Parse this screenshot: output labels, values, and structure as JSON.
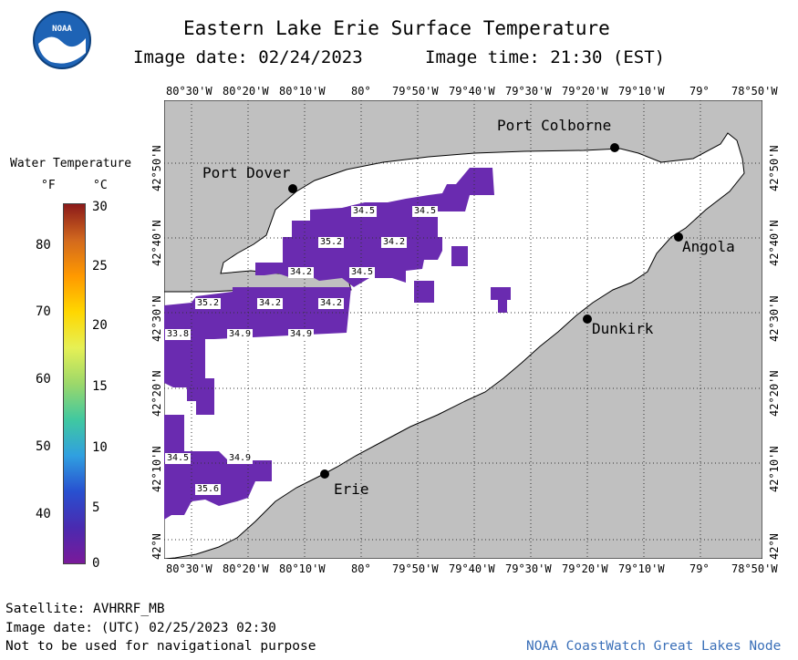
{
  "header": {
    "title": "Eastern Lake Erie Surface Temperature",
    "image_date_label": "Image date: 02/24/2023",
    "image_time_label": "Image time: 21:30 (EST)",
    "logo_text": "NOAA"
  },
  "map": {
    "lon_labels": [
      "80°30'W",
      "80°20'W",
      "80°10'W",
      "80°",
      "79°50'W",
      "79°40'W",
      "79°30'W",
      "79°20'W",
      "79°10'W",
      "79°",
      "78°50'W"
    ],
    "lat_labels": [
      "42°N",
      "42°10'N",
      "42°20'N",
      "42°30'N",
      "42°40'N",
      "42°50'N"
    ],
    "cities": [
      {
        "name": "Port Colborne"
      },
      {
        "name": "Port Dover"
      },
      {
        "name": "Angola"
      },
      {
        "name": "Dunkirk"
      },
      {
        "name": "Erie"
      }
    ],
    "temperature_labels": [
      "34.5",
      "34.5",
      "35.2",
      "34.2",
      "34.2",
      "34.5",
      "35.2",
      "34.2",
      "34.2",
      "33.8",
      "34.9",
      "34.9",
      "34.5",
      "34.9",
      "35.6"
    ],
    "colors": {
      "land": "#c0c0c0",
      "water_clear": "#ffffff",
      "water_temp": "#6a2bb0",
      "grid": "#333333"
    }
  },
  "legend": {
    "title": "Water Temperature",
    "f_header": "°F",
    "c_header": "°C",
    "f_ticks": [
      "80",
      "70",
      "60",
      "50",
      "40"
    ],
    "c_ticks": [
      "30",
      "25",
      "20",
      "15",
      "10",
      "5",
      "0"
    ],
    "gradient": [
      "#8b1a1a",
      "#d2691e",
      "#ff9900",
      "#ffd700",
      "#e6f055",
      "#9cd86a",
      "#40c8a0",
      "#30a0e0",
      "#2850d0",
      "#4a2ab0",
      "#7a1a9a"
    ]
  },
  "footer": {
    "satellite": "Satellite: AVHRRF_MB",
    "image_date_utc": "Image date: (UTC) 02/25/2023  02:30",
    "disclaimer": "Not to be used for navigational purpose",
    "credit": "NOAA CoastWatch Great Lakes Node"
  }
}
